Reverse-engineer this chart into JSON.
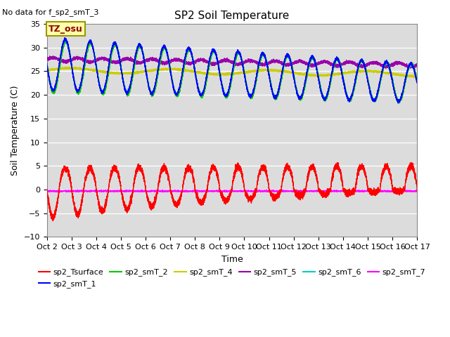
{
  "title": "SP2 Soil Temperature",
  "no_data_text": "No data for f_sp2_smT_3",
  "tz_label": "TZ_osu",
  "xlabel": "Time",
  "ylabel": "Soil Temperature (C)",
  "ylim": [
    -10,
    35
  ],
  "xlim_days": [
    0,
    15
  ],
  "x_tick_labels": [
    "Oct 2",
    "Oct 3",
    "Oct 4",
    "Oct 5",
    "Oct 6",
    "Oct 7",
    "Oct 8",
    "Oct 9",
    "Oct 10",
    "Oct 11",
    "Oct 12",
    "Oct 13",
    "Oct 14",
    "Oct 15",
    "Oct 16",
    "Oct 17"
  ],
  "background_color": "#dcdcdc",
  "series": {
    "sp2_Tsurface": {
      "color": "#ff0000",
      "lw": 1.0
    },
    "sp2_smT_1": {
      "color": "#0000ff",
      "lw": 1.0
    },
    "sp2_smT_2": {
      "color": "#00cc00",
      "lw": 1.0
    },
    "sp2_smT_4": {
      "color": "#cccc00",
      "lw": 1.2
    },
    "sp2_smT_5": {
      "color": "#9900aa",
      "lw": 1.0
    },
    "sp2_smT_6": {
      "color": "#00cccc",
      "lw": 1.0
    },
    "sp2_smT_7": {
      "color": "#ff00ff",
      "lw": 1.2
    }
  }
}
